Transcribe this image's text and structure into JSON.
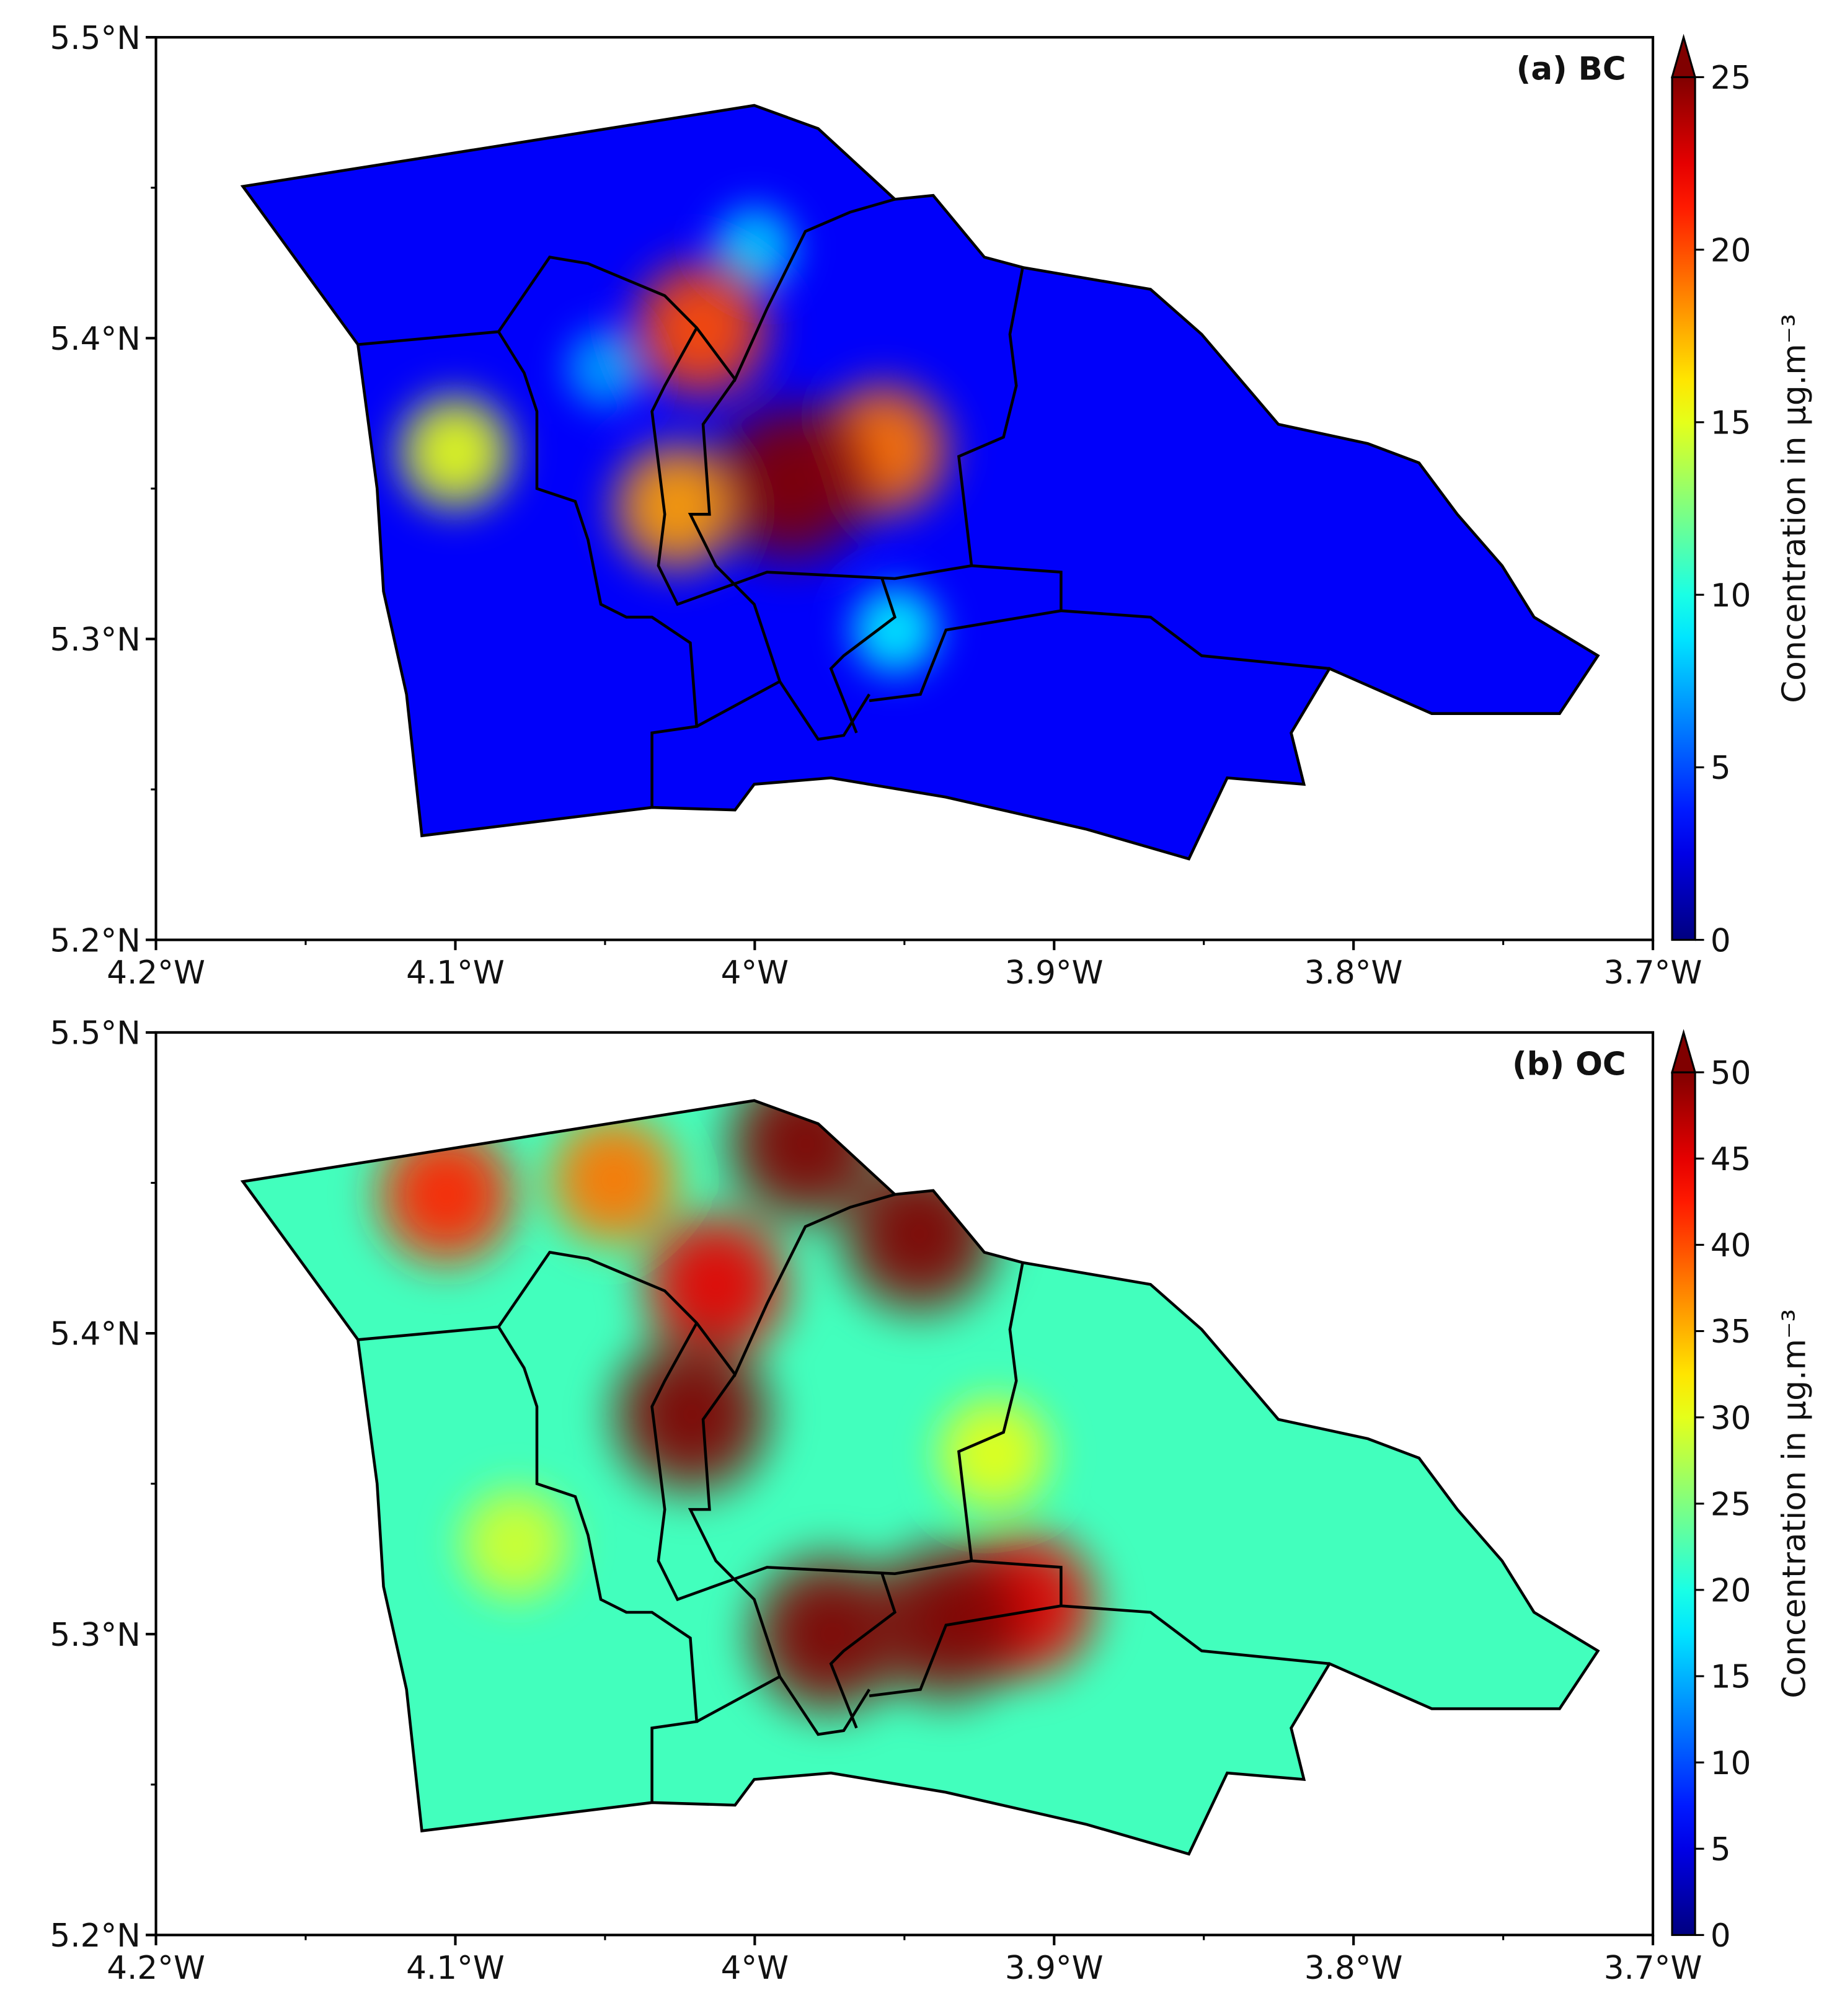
{
  "chart_data": [
    {
      "type": "map",
      "title": "(a) BC",
      "colorbar_label": "Concentration in µg.m⁻³",
      "clim": [
        0,
        25
      ],
      "cticks": [
        0,
        5,
        10,
        15,
        20,
        25
      ],
      "xlim": [
        -4.2,
        -3.7
      ],
      "xticks": [
        {
          "value": -4.2,
          "label": "4.2°W"
        },
        {
          "value": -4.1,
          "label": "4.1°W"
        },
        {
          "value": -4.0,
          "label": "4°W"
        },
        {
          "value": -3.9,
          "label": "3.9°W"
        },
        {
          "value": -3.8,
          "label": "3.8°W"
        },
        {
          "value": -3.7,
          "label": "3.7°W"
        }
      ],
      "ylim": [
        5.2,
        5.5
      ],
      "yticks": [
        {
          "value": 5.2,
          "label": "5.2°N"
        },
        {
          "value": 5.3,
          "label": "5.3°N"
        },
        {
          "value": 5.4,
          "label": "5.4°N"
        },
        {
          "value": 5.5,
          "label": "5.5°N"
        }
      ],
      "background": 3,
      "hotspots": [
        {
          "lon": -4.0,
          "lat": 5.43,
          "value": 8
        },
        {
          "lon": -4.05,
          "lat": 5.39,
          "value": 7
        },
        {
          "lon": -3.953,
          "lat": 5.303,
          "value": 9
        },
        {
          "lon": -3.957,
          "lat": 5.363,
          "value": 19
        },
        {
          "lon": -3.988,
          "lat": 5.352,
          "value": 25
        },
        {
          "lon": -4.026,
          "lat": 5.344,
          "value": 18
        },
        {
          "lon": -4.018,
          "lat": 5.403,
          "value": 20
        },
        {
          "lon": -4.1,
          "lat": 5.362,
          "value": 15
        }
      ]
    },
    {
      "type": "map",
      "title": "(b) OC",
      "colorbar_label": "Concentration in µg.m⁻³",
      "clim": [
        0,
        50
      ],
      "cticks": [
        0,
        5,
        10,
        15,
        20,
        25,
        30,
        35,
        40,
        45,
        50
      ],
      "xlim": [
        -4.2,
        -3.7
      ],
      "xticks": [
        {
          "value": -4.2,
          "label": "4.2°W"
        },
        {
          "value": -4.1,
          "label": "4.1°W"
        },
        {
          "value": -4.0,
          "label": "4°W"
        },
        {
          "value": -3.9,
          "label": "3.9°W"
        },
        {
          "value": -3.8,
          "label": "3.8°W"
        },
        {
          "value": -3.7,
          "label": "3.7°W"
        }
      ],
      "ylim": [
        5.2,
        5.5
      ],
      "yticks": [
        {
          "value": 5.2,
          "label": "5.2°N"
        },
        {
          "value": 5.3,
          "label": "5.3°N"
        },
        {
          "value": 5.4,
          "label": "5.4°N"
        },
        {
          "value": 5.5,
          "label": "5.5°N"
        }
      ],
      "background": 22,
      "hotspots": [
        {
          "lon": -4.08,
          "lat": 5.33,
          "value": 29
        },
        {
          "lon": -3.92,
          "lat": 5.36,
          "value": 30
        },
        {
          "lon": -4.047,
          "lat": 5.451,
          "value": 38
        },
        {
          "lon": -4.103,
          "lat": 5.446,
          "value": 42
        },
        {
          "lon": -4.013,
          "lat": 5.416,
          "value": 45
        },
        {
          "lon": -3.91,
          "lat": 5.31,
          "value": 45
        },
        {
          "lon": -3.983,
          "lat": 5.463,
          "value": 50
        },
        {
          "lon": -3.945,
          "lat": 5.433,
          "value": 50
        },
        {
          "lon": -4.021,
          "lat": 5.373,
          "value": 50
        },
        {
          "lon": -3.975,
          "lat": 5.3,
          "value": 50
        },
        {
          "lon": -3.936,
          "lat": 5.304,
          "value": 50
        }
      ]
    }
  ]
}
